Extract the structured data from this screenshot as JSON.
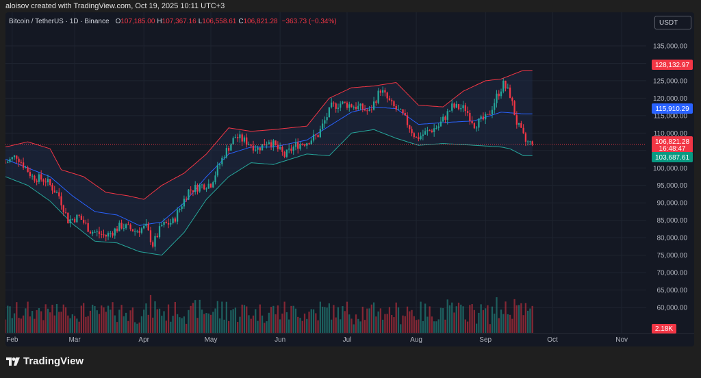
{
  "header": {
    "caption": "aloisov created with TradingView.com, Oct 19, 2025 10:11 UTC+3"
  },
  "legend": {
    "symbol": "Bitcoin / TetherUS · 1D · Binance",
    "o_label": "O",
    "o_value": "107,185.00",
    "h_label": "H",
    "h_value": "107,367.16",
    "l_label": "L",
    "l_value": "106,558.61",
    "c_label": "C",
    "c_value": "106,821.28",
    "change": "−363.73 (−0.34%)"
  },
  "currency_button": {
    "label": "USDT"
  },
  "price_badges": {
    "upper": "128,132.97",
    "middle": "115,910.29",
    "last": "106,821.28",
    "countdown": "16:48:47",
    "lower": "103,687.61",
    "volume": "2.18K"
  },
  "footer": {
    "logo_text": "TradingView"
  },
  "colors": {
    "up": "#26a69a",
    "down": "#f23645",
    "upper_band": "#f23645",
    "middle_band": "#2962ff",
    "lower_band": "#26a69a",
    "band_fill": "#1e2a44",
    "background": "#141823",
    "grid": "#1f2430",
    "axis_text": "#b2b5be"
  },
  "chart_data": {
    "type": "candlestick",
    "symbol": "Bitcoin / TetherUS",
    "interval": "1D",
    "exchange": "Binance",
    "yaxis_ticks": [
      "135,000.00",
      "130,000.00",
      "125,000.00",
      "120,000.00",
      "115,000.00",
      "110,000.00",
      "105,000.00",
      "100,000.00",
      "95,000.00",
      "90,000.00",
      "85,000.00",
      "80,000.00",
      "75,000.00",
      "70,000.00",
      "65,000.00",
      "60,000.00"
    ],
    "xaxis_ticks": [
      "Feb",
      "Mar",
      "Apr",
      "May",
      "Jun",
      "Jul",
      "Aug",
      "Sep",
      "Oct",
      "Nov"
    ],
    "ylim": [
      57000,
      137000
    ],
    "x_start": "2025-01-29",
    "x_end": "2025-11-12",
    "indicators": [
      "Bollinger Bands (upper, basis, lower)",
      "Volume"
    ],
    "bollinger_upper": [
      [
        0,
        106000
      ],
      [
        10,
        107500
      ],
      [
        20,
        105500
      ],
      [
        25,
        99500
      ],
      [
        35,
        97500
      ],
      [
        45,
        93000
      ],
      [
        55,
        92000
      ],
      [
        62,
        91000
      ],
      [
        70,
        95000
      ],
      [
        80,
        98500
      ],
      [
        90,
        104000
      ],
      [
        100,
        111500
      ],
      [
        110,
        110500
      ],
      [
        120,
        111000
      ],
      [
        135,
        112000
      ],
      [
        145,
        120000
      ],
      [
        155,
        123000
      ],
      [
        165,
        123500
      ],
      [
        175,
        124500
      ],
      [
        185,
        118000
      ],
      [
        196,
        117500
      ],
      [
        205,
        122000
      ],
      [
        215,
        125000
      ],
      [
        222,
        125500
      ],
      [
        232,
        128000
      ]
    ],
    "bollinger_middle": [
      [
        0,
        102500
      ],
      [
        10,
        100000
      ],
      [
        20,
        97500
      ],
      [
        30,
        92000
      ],
      [
        40,
        87500
      ],
      [
        50,
        86500
      ],
      [
        60,
        83500
      ],
      [
        70,
        84500
      ],
      [
        80,
        90000
      ],
      [
        90,
        97500
      ],
      [
        100,
        104000
      ],
      [
        110,
        106000
      ],
      [
        120,
        106000
      ],
      [
        135,
        108000
      ],
      [
        145,
        112000
      ],
      [
        155,
        116000
      ],
      [
        165,
        117500
      ],
      [
        175,
        117000
      ],
      [
        185,
        112500
      ],
      [
        196,
        113000
      ],
      [
        210,
        113500
      ],
      [
        222,
        116000
      ],
      [
        232,
        115500
      ]
    ],
    "bollinger_lower": [
      [
        0,
        97500
      ],
      [
        10,
        95000
      ],
      [
        20,
        90500
      ],
      [
        30,
        84000
      ],
      [
        40,
        79000
      ],
      [
        50,
        78500
      ],
      [
        60,
        76000
      ],
      [
        70,
        75000
      ],
      [
        80,
        81500
      ],
      [
        90,
        91000
      ],
      [
        100,
        97500
      ],
      [
        110,
        101500
      ],
      [
        120,
        101000
      ],
      [
        135,
        104000
      ],
      [
        145,
        103500
      ],
      [
        155,
        110000
      ],
      [
        165,
        111000
      ],
      [
        175,
        108500
      ],
      [
        185,
        106500
      ],
      [
        196,
        107000
      ],
      [
        210,
        106500
      ],
      [
        222,
        106000
      ],
      [
        226,
        105500
      ],
      [
        232,
        103500
      ]
    ],
    "close_points": [
      [
        0,
        101500
      ],
      [
        5,
        103500
      ],
      [
        12,
        97500
      ],
      [
        18,
        96500
      ],
      [
        24,
        92000
      ],
      [
        28,
        85000
      ],
      [
        33,
        86000
      ],
      [
        38,
        82000
      ],
      [
        45,
        80500
      ],
      [
        52,
        83500
      ],
      [
        58,
        82000
      ],
      [
        63,
        83000
      ],
      [
        66,
        78000
      ],
      [
        70,
        83500
      ],
      [
        75,
        84500
      ],
      [
        82,
        93500
      ],
      [
        88,
        95000
      ],
      [
        92,
        95500
      ],
      [
        98,
        104000
      ],
      [
        103,
        109000
      ],
      [
        108,
        107500
      ],
      [
        113,
        105500
      ],
      [
        118,
        108000
      ],
      [
        125,
        103500
      ],
      [
        130,
        106500
      ],
      [
        135,
        107500
      ],
      [
        140,
        109500
      ],
      [
        146,
        117500
      ],
      [
        150,
        118500
      ],
      [
        155,
        118000
      ],
      [
        160,
        117000
      ],
      [
        163,
        116000
      ],
      [
        168,
        122500
      ],
      [
        173,
        118000
      ],
      [
        178,
        115000
      ],
      [
        184,
        108500
      ],
      [
        188,
        110000
      ],
      [
        194,
        112000
      ],
      [
        200,
        117500
      ],
      [
        206,
        117000
      ],
      [
        210,
        112500
      ],
      [
        216,
        114500
      ],
      [
        220,
        120500
      ],
      [
        223,
        124000
      ],
      [
        226,
        121000
      ],
      [
        229,
        113000
      ],
      [
        233,
        107500
      ],
      [
        236,
        106800
      ]
    ],
    "last_close": 106821.28,
    "last_volume_label": "2.18K"
  }
}
